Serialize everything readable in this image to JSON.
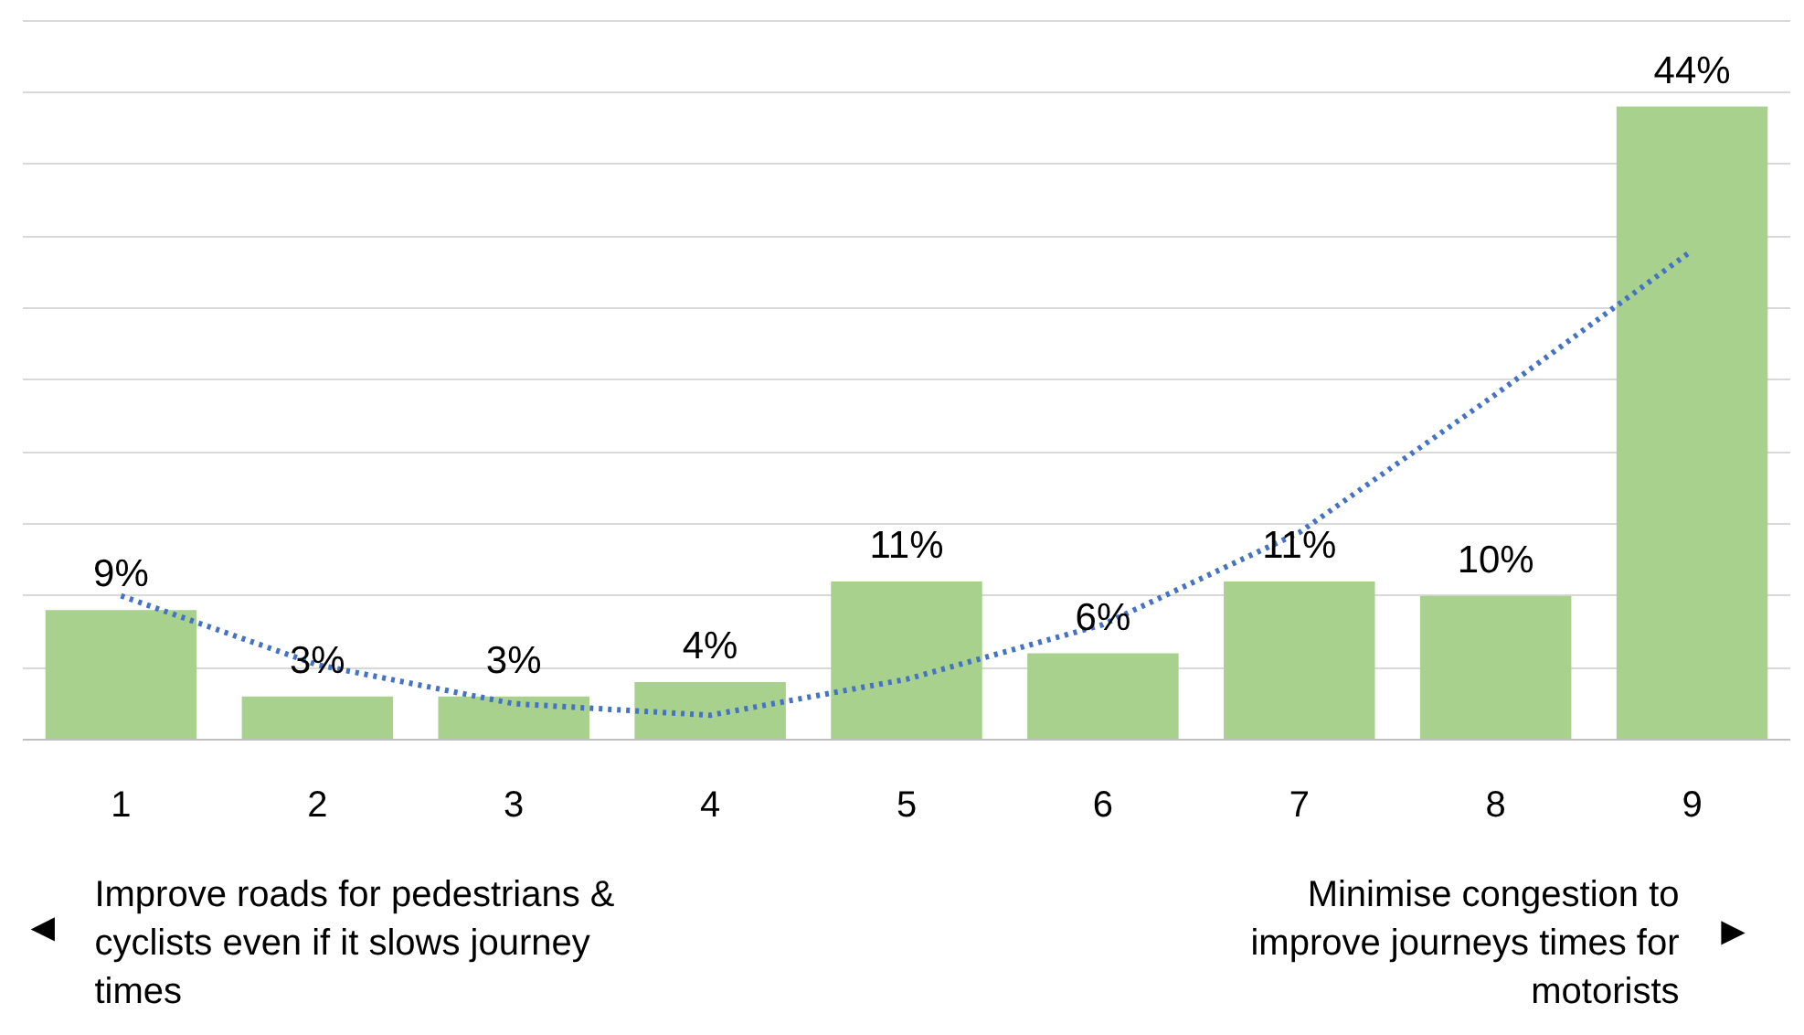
{
  "chart_data": {
    "type": "bar",
    "categories": [
      "1",
      "2",
      "3",
      "4",
      "5",
      "6",
      "7",
      "8",
      "9"
    ],
    "series": [
      {
        "color": "#a9d18e",
        "values": [
          9,
          3,
          3,
          4,
          11,
          6,
          11,
          10,
          44
        ],
        "value_labels": [
          "9%",
          "3%",
          "3%",
          "4%",
          "11%",
          "6%",
          "11%",
          "10%",
          "44%"
        ]
      },
      {
        "type": "line",
        "color": "#4472c4",
        "line_style": "dotted",
        "marker": "none",
        "values": [
          10,
          5.2,
          2.5,
          1.7,
          4.2,
          8,
          14.4,
          24,
          34
        ]
      }
    ],
    "yticks": [
      {
        "value": 0,
        "label": null
      },
      {
        "value": 5,
        "label": null
      },
      {
        "value": 10,
        "label": null
      },
      {
        "value": 15,
        "label": null
      },
      {
        "value": 20,
        "label": null
      },
      {
        "value": 25,
        "label": null
      },
      {
        "value": 30,
        "label": null
      },
      {
        "value": 35,
        "label": null
      },
      {
        "value": 40,
        "label": null
      },
      {
        "value": 45,
        "label": null
      },
      {
        "value": 50,
        "label": null
      }
    ],
    "grid": "y",
    "tick_labels": "x",
    "annotations": [
      "◄",
      "Improve roads for pedestrians &\ncyclists even if it slows journey\ntimes",
      "Minimise congestion to\nimprove journeys times for\nmotorists",
      "►"
    ]
  }
}
